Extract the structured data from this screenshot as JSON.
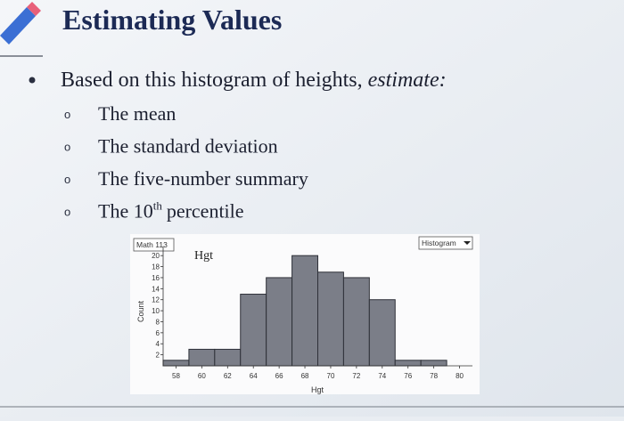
{
  "slide": {
    "title": "Estimating Values",
    "bullet": {
      "text": "Based on this histogram of heights,",
      "emphasis": "estimate:"
    },
    "items": [
      {
        "text": "The mean"
      },
      {
        "text": "The standard deviation"
      },
      {
        "text": "The five-number summary"
      },
      {
        "text": "The 10",
        "sup": "th",
        "after": "percentile"
      }
    ]
  },
  "chart_data": {
    "type": "histogram",
    "title": "Hgt",
    "dataset": "Math 113",
    "menu": "Histogram",
    "x_label": "Hgt",
    "y_label": "Count",
    "bins": [
      57,
      59,
      61,
      63,
      65,
      67,
      69,
      71,
      73,
      75,
      77,
      79
    ],
    "values": [
      1,
      3,
      3,
      13,
      16,
      20,
      17,
      16,
      12,
      1,
      1
    ],
    "color": "#7b7e88",
    "xlim": [
      57,
      81
    ],
    "xticks": [
      58,
      60,
      62,
      64,
      66,
      68,
      70,
      72,
      74,
      76,
      78,
      80
    ],
    "ylim": [
      0,
      21
    ],
    "yticks": [
      2,
      4,
      6,
      8,
      10,
      12,
      14,
      16,
      18,
      20
    ]
  }
}
